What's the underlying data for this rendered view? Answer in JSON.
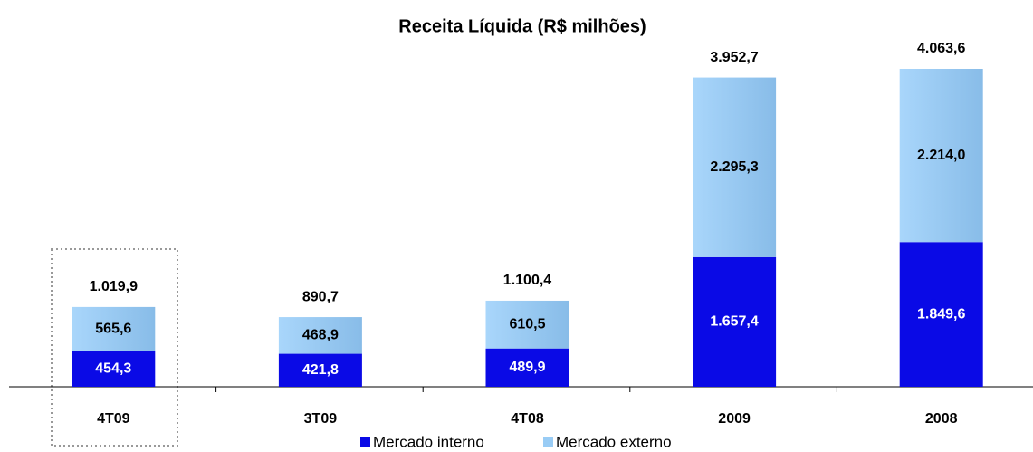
{
  "chart_data": {
    "type": "stacked_bar",
    "title": "Receita Líquida (R$ milhões)",
    "categories": [
      "4T09",
      "3T09",
      "4T08",
      "2009",
      "2008"
    ],
    "series": [
      {
        "name": "Mercado interno",
        "color": "#0a0ae6",
        "values": [
          454.3,
          421.8,
          489.9,
          1657.4,
          1849.6
        ],
        "value_labels": [
          "454,3",
          "421,8",
          "489,9",
          "1.657,4",
          "1.849,6"
        ]
      },
      {
        "name": "Mercado externo",
        "color": "#99ccf5",
        "values": [
          565.6,
          468.9,
          610.5,
          2295.3,
          2214.0
        ],
        "value_labels": [
          "565,6",
          "468,9",
          "610,5",
          "2.295,3",
          "2.214,0"
        ]
      }
    ],
    "totals": {
      "values": [
        1019.9,
        890.7,
        1100.4,
        3952.7,
        4063.6
      ],
      "value_labels": [
        "1.019,9",
        "890,7",
        "1.100,4",
        "3.952,7",
        "4.063,6"
      ]
    },
    "legend": "bottom"
  }
}
